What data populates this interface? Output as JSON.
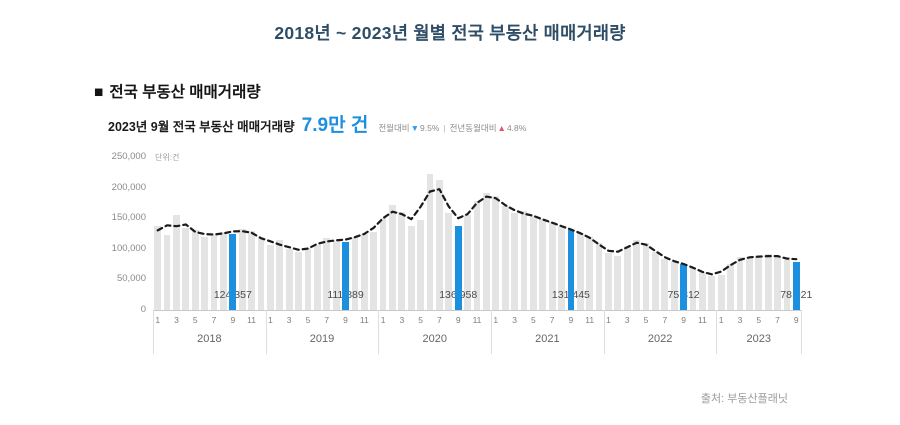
{
  "page_title": "2018년 ~ 2023년 월별 전국 부동산 매매거래량",
  "section": {
    "bullet": "■",
    "title": "전국 부동산 매매거래량"
  },
  "subtitle": {
    "prefix": "2023년 9월 전국 부동산 매매거래량",
    "highlight": "7.9만 건",
    "mom_label": "전월대비",
    "mom_arrow": "▼",
    "mom_value": "9.5%",
    "divider": "|",
    "yoy_label": "전년동월대비",
    "yoy_arrow": "▲",
    "yoy_value": "4.8%"
  },
  "source": "출처: 부동산플래닛",
  "colors": {
    "accent_blue": "#1d8fdf",
    "bar_gray": "#e4e4e4",
    "title_navy": "#2e4d66",
    "trend_black": "#1b1b1b",
    "down_blue": "#2a9df4",
    "up_red": "#e8506a"
  },
  "chart_data": {
    "type": "bar",
    "title": "전국 부동산 매매거래량",
    "unit_label": "단위:건",
    "xlabel": "",
    "ylabel": "",
    "ylim": [
      0,
      250000
    ],
    "yticks": [
      0,
      50000,
      100000,
      150000,
      200000,
      250000
    ],
    "ytick_labels": [
      "0",
      "50,000",
      "100,000",
      "150,000",
      "200,000",
      "250,000"
    ],
    "grid": false,
    "legend": false,
    "years": [
      "2018",
      "2019",
      "2020",
      "2021",
      "2022",
      "2023"
    ],
    "months_per_year": [
      12,
      12,
      12,
      12,
      12,
      9
    ],
    "month_tick_labels": [
      "1",
      "3",
      "5",
      "7",
      "9",
      "11"
    ],
    "highlight_month_index_in_year": 8,
    "highlight_value_labels": [
      "124,357",
      "111,889",
      "136,958",
      "131,445",
      "75,312",
      "78,921"
    ],
    "trend_line": {
      "style": "dashed",
      "smoothing": "3-month moving average"
    },
    "values": [
      138000,
      122000,
      155000,
      134000,
      130000,
      119000,
      123000,
      128000,
      124357,
      133000,
      129000,
      117000,
      106000,
      114000,
      100000,
      94000,
      101000,
      106000,
      117000,
      113000,
      111889,
      120000,
      125000,
      128000,
      150000,
      172000,
      160000,
      138000,
      147000,
      222000,
      212000,
      158000,
      136958,
      155000,
      178000,
      192000,
      186000,
      170000,
      158000,
      161000,
      153000,
      148000,
      143000,
      137000,
      131445,
      126000,
      119000,
      109000,
      93000,
      88000,
      105000,
      115000,
      110000,
      95000,
      84000,
      80000,
      75312,
      70000,
      62000,
      55000,
      58000,
      75000,
      87000,
      84000,
      87000,
      91000,
      86000,
      87000,
      78921
    ]
  }
}
